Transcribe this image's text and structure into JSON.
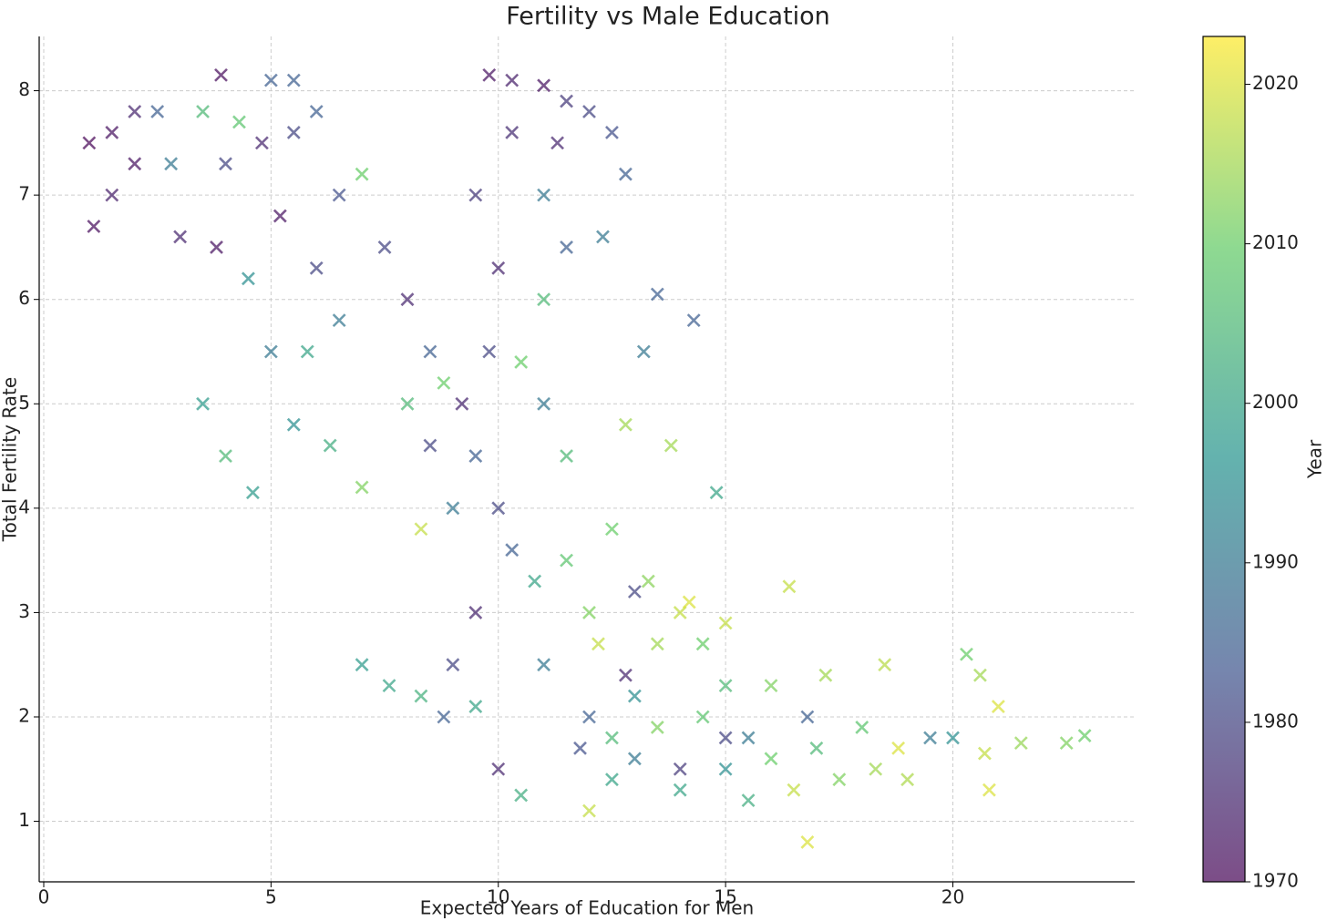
{
  "chart_data": {
    "type": "scatter",
    "title": "Fertility vs Male Education",
    "xlabel": "Expected Years of Education for Men",
    "ylabel": "Total Fertility Rate",
    "colorbar_label": "Year",
    "colormap": "viridis",
    "marker": "x",
    "alpha": 0.7,
    "grid": true,
    "xlim": [
      -0.1,
      24
    ],
    "ylim": [
      0.42,
      8.52
    ],
    "clim": [
      1970,
      2023
    ],
    "xticks": [
      0,
      5,
      10,
      15,
      20
    ],
    "yticks": [
      1,
      2,
      3,
      4,
      5,
      6,
      7,
      8
    ],
    "cticks": [
      1970,
      1980,
      1990,
      2000,
      2010,
      2020
    ],
    "x": [
      1.0,
      1.5,
      2.0,
      2.5,
      1.1,
      1.5,
      2.0,
      2.8,
      3.0,
      3.5,
      3.8,
      4.0,
      4.3,
      4.8,
      5.0,
      3.9,
      5.5,
      4.5,
      5.2,
      5.5,
      6.0,
      6.5,
      7.0,
      6.0,
      6.5,
      5.8,
      5.0,
      3.5,
      4.0,
      4.6,
      5.5,
      6.3,
      7.0,
      7.0,
      7.6,
      8.3,
      7.5,
      8.0,
      8.5,
      8.0,
      8.5,
      9.0,
      8.3,
      8.8,
      9.2,
      9.5,
      9.8,
      10.0,
      9.5,
      9.8,
      10.3,
      10.3,
      11.0,
      11.3,
      11.5,
      12.0,
      12.5,
      12.8,
      11.0,
      11.5,
      12.3,
      13.5,
      14.3,
      13.2,
      12.8,
      13.8,
      14.8,
      11.0,
      10.5,
      11.0,
      11.5,
      10.0,
      10.3,
      10.8,
      9.5,
      9.0,
      8.8,
      9.5,
      10.0,
      10.5,
      11.0,
      11.5,
      12.0,
      12.5,
      12.2,
      12.8,
      13.0,
      13.5,
      14.0,
      14.5,
      12.0,
      12.5,
      13.0,
      13.5,
      12.0,
      12.5,
      13.0,
      14.0,
      14.5,
      15.0,
      15.0,
      15.5,
      15.5,
      16.0,
      16.0,
      16.5,
      16.4,
      16.8,
      17.0,
      17.2,
      17.5,
      18.0,
      18.3,
      18.5,
      18.8,
      19.5,
      20.0,
      19.0,
      20.3,
      20.6,
      20.8,
      21.0,
      21.5,
      22.5,
      22.9,
      20.7,
      16.8,
      15.0,
      14.0,
      11.8,
      13.3,
      14.2,
      15.0
    ],
    "y": [
      7.5,
      7.6,
      7.8,
      7.8,
      6.7,
      7.0,
      7.3,
      7.3,
      6.6,
      7.8,
      6.5,
      7.3,
      7.7,
      7.5,
      8.1,
      8.15,
      8.1,
      6.2,
      6.8,
      7.6,
      7.8,
      7.0,
      7.2,
      6.3,
      5.8,
      5.5,
      5.5,
      5.0,
      4.5,
      4.15,
      4.8,
      4.6,
      4.2,
      2.5,
      2.3,
      2.2,
      6.5,
      6.0,
      5.5,
      5.0,
      4.6,
      4.0,
      3.8,
      5.2,
      5.0,
      4.5,
      5.5,
      6.3,
      7.0,
      8.15,
      8.1,
      7.6,
      8.05,
      7.5,
      7.9,
      7.8,
      7.6,
      7.2,
      7.0,
      6.5,
      6.6,
      6.05,
      5.8,
      5.5,
      4.8,
      4.6,
      4.15,
      6.0,
      5.4,
      5.0,
      4.5,
      4.0,
      3.6,
      3.3,
      3.0,
      2.5,
      2.0,
      2.1,
      1.5,
      1.25,
      2.5,
      3.5,
      3.0,
      3.8,
      2.7,
      2.4,
      3.2,
      2.7,
      3.0,
      2.7,
      2.0,
      1.8,
      1.6,
      1.9,
      1.1,
      1.4,
      2.2,
      1.3,
      2.0,
      1.5,
      2.3,
      1.2,
      1.8,
      1.6,
      2.3,
      1.3,
      3.25,
      0.8,
      1.7,
      2.4,
      1.4,
      1.9,
      1.5,
      2.5,
      1.7,
      1.8,
      1.8,
      1.4,
      2.6,
      2.4,
      1.3,
      2.1,
      1.75,
      1.75,
      1.82,
      1.65,
      2.0,
      1.8,
      1.5,
      1.7,
      3.3,
      3.1,
      2.9
    ],
    "c": [
      1970,
      1972,
      1975,
      1985,
      1971,
      1974,
      1972,
      1990,
      1975,
      2005,
      1972,
      1980,
      2008,
      1975,
      1985,
      1971,
      1985,
      1995,
      1972,
      1980,
      1985,
      1982,
      2010,
      1980,
      1990,
      2000,
      1990,
      1998,
      2005,
      1998,
      1995,
      2002,
      2012,
      1998,
      2000,
      2003,
      1980,
      1975,
      1985,
      2005,
      1980,
      1990,
      2018,
      2010,
      1975,
      1985,
      1980,
      1975,
      1978,
      1972,
      1974,
      1976,
      1972,
      1975,
      1978,
      1980,
      1982,
      1985,
      1990,
      1985,
      1990,
      1985,
      1985,
      1990,
      2015,
      2015,
      2000,
      2005,
      2010,
      1990,
      2005,
      1980,
      1985,
      2000,
      1975,
      1980,
      1985,
      2000,
      1975,
      2002,
      1990,
      2008,
      2012,
      2010,
      2018,
      1975,
      1980,
      2015,
      2018,
      2010,
      1985,
      2005,
      1990,
      2012,
      2018,
      2000,
      1995,
      2000,
      2008,
      1995,
      2005,
      2002,
      1990,
      2010,
      2012,
      2018,
      2018,
      2020,
      2005,
      2015,
      2012,
      2008,
      2015,
      2017,
      2020,
      1990,
      1995,
      2016,
      2010,
      2015,
      2020,
      2020,
      2014,
      2012,
      2010,
      2018,
      1985,
      1980,
      1978,
      1982,
      2013,
      2020,
      2018
    ]
  }
}
